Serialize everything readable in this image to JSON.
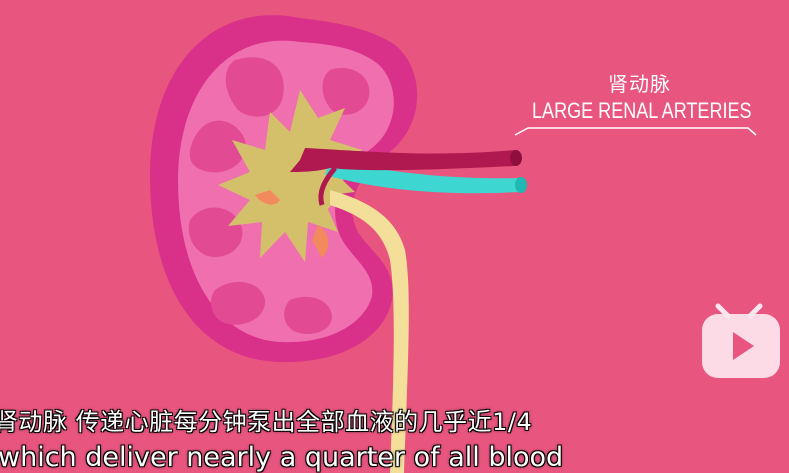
{
  "scene": {
    "background_color": "#e8557f",
    "kidney_color": "#d9308a",
    "artery_color": "#b01850",
    "vein_color": "#3dd6d0",
    "ureter_color": "#f3df9a"
  },
  "annotation": {
    "label_zh": "肾动脉",
    "label_en": "LARGE RENAL ARTERIES"
  },
  "subtitles": {
    "line_zh": "肾动脉 传递心脏每分钟泵出全部血液的几乎近1/4",
    "line_en": " which deliver nearly a quarter of all blood"
  },
  "watermark": {
    "icon": "bilibili-tv-play-icon"
  }
}
